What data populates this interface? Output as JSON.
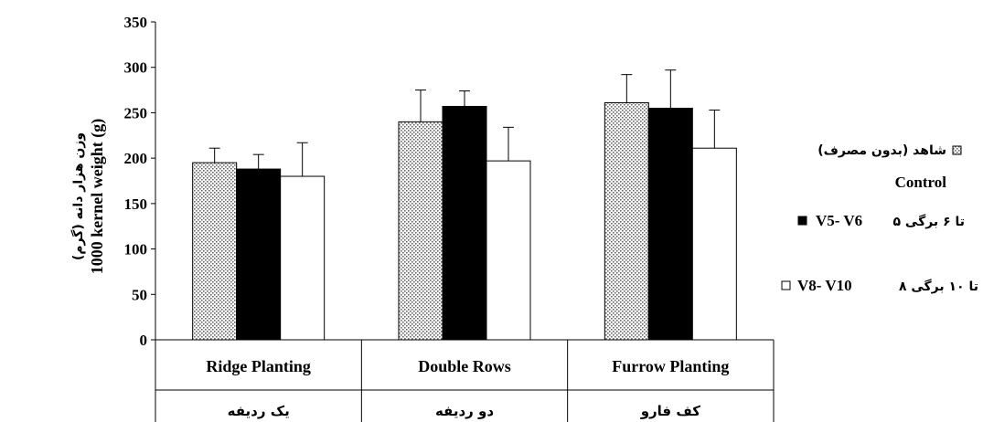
{
  "chart_data": {
    "type": "bar",
    "title": "",
    "ylabel_fa": "وزن هزار دانه (گرم)",
    "ylabel": "1000 kernel weight (g)",
    "ylim": [
      0,
      350
    ],
    "yticks": [
      0,
      50,
      100,
      150,
      200,
      250,
      300,
      350
    ],
    "grid": false,
    "legend_position": "right",
    "categories": [
      "Ridge Planting",
      "Double Rows",
      "Furrow Planting"
    ],
    "categories_fa": [
      "یک ردیفه",
      "دو ردیفه",
      "کف فارو"
    ],
    "series": [
      {
        "name": "شاهد (بدون مصرف) Control",
        "legend_fa": "شاهد (بدون مصرف)",
        "legend_en": "Control",
        "fill": "dotted",
        "values": [
          195,
          240,
          261
        ],
        "errors": [
          16,
          35,
          31
        ]
      },
      {
        "name": "۵ تا ۶ برگی V5- V6",
        "legend_fa": "۵ تا ۶ برگی",
        "legend_en": "V5- V6",
        "fill": "#000000",
        "values": [
          188,
          257,
          255
        ],
        "errors": [
          16,
          17,
          42
        ]
      },
      {
        "name": "۸ تا ۱۰ برگی V8- V10",
        "legend_fa": "۸ تا ۱۰ برگی",
        "legend_en": "V8- V10",
        "fill": "#ffffff",
        "values": [
          180,
          197,
          211
        ],
        "errors": [
          37,
          37,
          42
        ]
      }
    ]
  }
}
